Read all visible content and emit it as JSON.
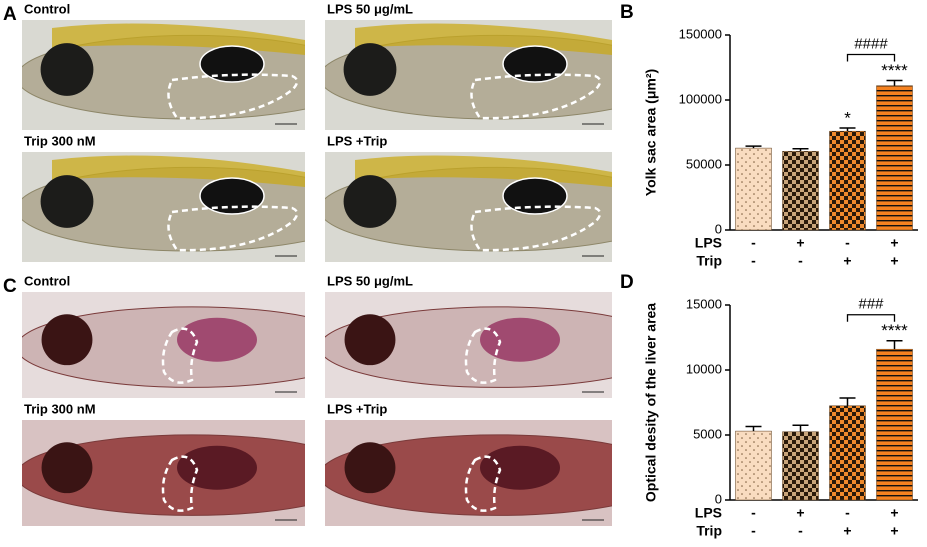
{
  "figure_panels": [
    {
      "label": "A",
      "images": [
        "Control",
        "LPS 50 μg/mL",
        "Trip 300 nM",
        "LPS +Trip"
      ]
    },
    {
      "label": "C",
      "images": [
        "Control",
        "LPS 50 μg/mL",
        "Trip 300 nM",
        "LPS +Trip"
      ]
    }
  ],
  "chart_data": [
    {
      "type": "bar",
      "panel_label": "B",
      "ylabel": "Yolk sac area (μm²)",
      "values": [
        63000,
        60500,
        76000,
        111000
      ],
      "errors": [
        1500,
        2000,
        2500,
        4000
      ],
      "colors": [
        "#f9dcc0",
        "#c9a57a",
        "#f08a2c",
        "#f58220"
      ],
      "patterns": [
        "dots",
        "checker",
        "checker",
        "hlines"
      ],
      "ylim": [
        0,
        150000
      ],
      "yticks": [
        0,
        50000,
        100000,
        150000
      ],
      "factor_rows": [
        {
          "label": "LPS",
          "levels": [
            "-",
            "+",
            "-",
            "+"
          ]
        },
        {
          "label": "Trip",
          "levels": [
            "-",
            "-",
            "+",
            "+"
          ]
        }
      ],
      "value_annotations": [
        {
          "index": 2,
          "text": "*"
        },
        {
          "index": 3,
          "text": "****"
        }
      ],
      "comparisons": [
        {
          "from": 2,
          "to": 3,
          "text": "####"
        }
      ]
    },
    {
      "type": "bar",
      "panel_label": "D",
      "ylabel": "Optical desity of the liver area",
      "values": [
        5300,
        5250,
        7250,
        11600
      ],
      "errors": [
        350,
        500,
        600,
        650
      ],
      "colors": [
        "#f9dcc0",
        "#c9a57a",
        "#f08a2c",
        "#f58220"
      ],
      "patterns": [
        "dots",
        "checker",
        "checker",
        "hlines"
      ],
      "ylim": [
        0,
        15000
      ],
      "yticks": [
        0,
        5000,
        10000,
        15000
      ],
      "factor_rows": [
        {
          "label": "LPS",
          "levels": [
            "-",
            "+",
            "-",
            "+"
          ]
        },
        {
          "label": "Trip",
          "levels": [
            "-",
            "-",
            "+",
            "+"
          ]
        }
      ],
      "value_annotations": [
        {
          "index": 3,
          "text": "****"
        }
      ],
      "comparisons": [
        {
          "from": 2,
          "to": 3,
          "text": "###"
        }
      ]
    }
  ]
}
